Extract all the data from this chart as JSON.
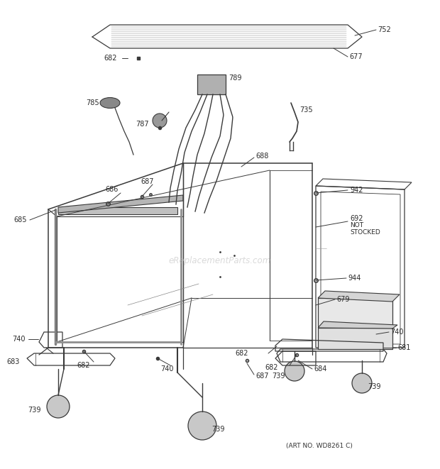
{
  "art_no": "(ART NO. WD8261 C)",
  "watermark": "eReplacementParts.com",
  "bg_color": "#ffffff",
  "c": "#3a3a3a",
  "lc": "#2a2a2a",
  "wm_color": "#bbbbbb",
  "fig_width": 6.2,
  "fig_height": 6.61,
  "dpi": 100
}
